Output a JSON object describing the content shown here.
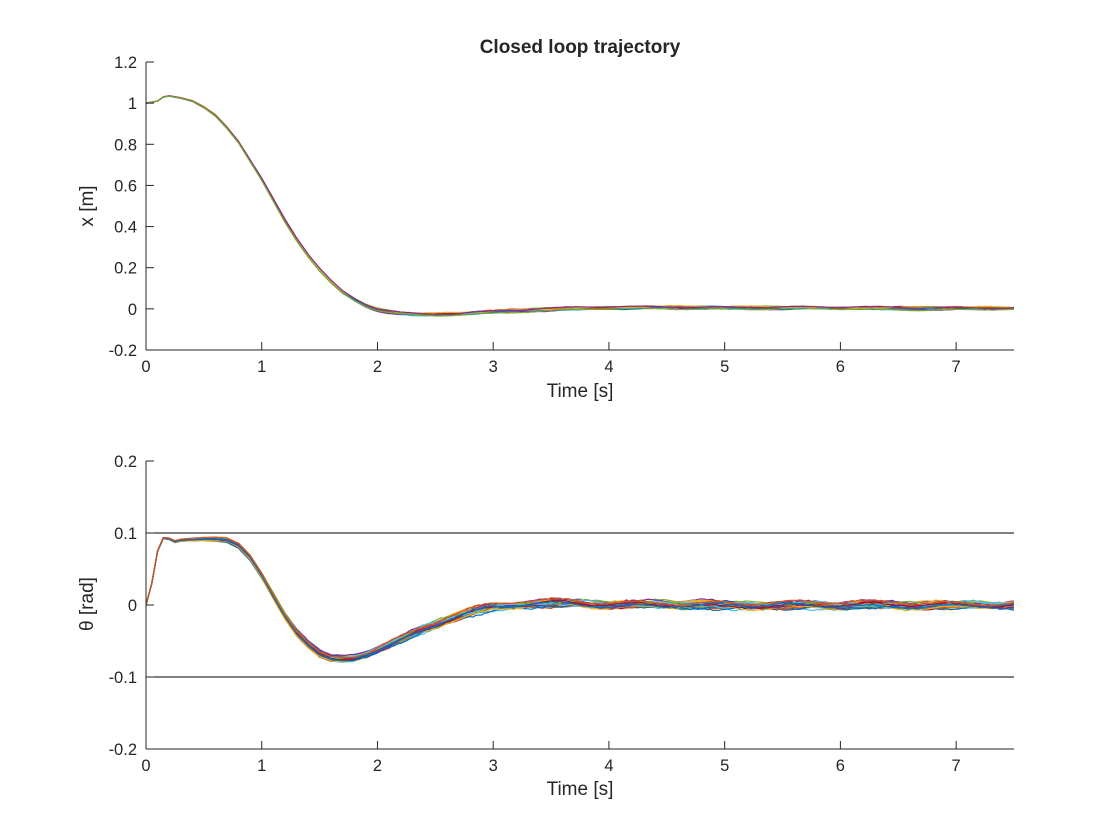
{
  "chart_data": [
    {
      "type": "line",
      "title": "Closed loop trajectory",
      "xlabel": "Time [s]",
      "ylabel": "x [m]",
      "xlim": [
        0,
        7.5
      ],
      "ylim": [
        -0.2,
        1.2
      ],
      "xticks": [
        "0",
        "1",
        "2",
        "3",
        "4",
        "5",
        "6",
        "7"
      ],
      "yticks": [
        "-0.2",
        "0",
        "0.2",
        "0.4",
        "0.6",
        "0.8",
        "1",
        "1.2"
      ],
      "grid": false,
      "legend": "none",
      "series_count": 12,
      "x": [
        0,
        0.1,
        0.15,
        0.2,
        0.3,
        0.4,
        0.5,
        0.6,
        0.7,
        0.8,
        0.9,
        1.0,
        1.1,
        1.2,
        1.3,
        1.4,
        1.5,
        1.6,
        1.7,
        1.8,
        1.9,
        2.0,
        2.1,
        2.2,
        2.3,
        2.4,
        2.5,
        2.6,
        2.7,
        2.8,
        3.0,
        3.25,
        3.5,
        3.75,
        4.0,
        4.5,
        5.0,
        5.5,
        6.0,
        6.5,
        7.0,
        7.5
      ],
      "mean": [
        1.0,
        1.01,
        1.03,
        1.035,
        1.025,
        1.01,
        0.98,
        0.94,
        0.88,
        0.81,
        0.72,
        0.63,
        0.53,
        0.43,
        0.34,
        0.26,
        0.19,
        0.13,
        0.08,
        0.045,
        0.015,
        -0.005,
        -0.015,
        -0.022,
        -0.026,
        -0.028,
        -0.028,
        -0.026,
        -0.024,
        -0.02,
        -0.015,
        -0.008,
        -0.002,
        0.002,
        0.004,
        0.006,
        0.006,
        0.004,
        0.003,
        0.002,
        0.002,
        0.002
      ],
      "colors": [
        "#0072BD",
        "#D95319",
        "#EDB120",
        "#7E2F8E",
        "#77AC30",
        "#4DBEEE",
        "#A2142F"
      ]
    },
    {
      "type": "line",
      "title": "",
      "xlabel": "Time [s]",
      "ylabel": "θ [rad]",
      "xlim": [
        0,
        7.5
      ],
      "ylim": [
        -0.2,
        0.2
      ],
      "xticks": [
        "0",
        "1",
        "2",
        "3",
        "4",
        "5",
        "6",
        "7"
      ],
      "yticks": [
        "-0.2",
        "-0.1",
        "0",
        "0.1",
        "0.2"
      ],
      "grid": false,
      "legend": "none",
      "reference_lines": [
        0.1,
        -0.1
      ],
      "series_count": 30,
      "x": [
        0,
        0.05,
        0.1,
        0.15,
        0.2,
        0.25,
        0.3,
        0.4,
        0.5,
        0.6,
        0.7,
        0.8,
        0.9,
        1.0,
        1.1,
        1.2,
        1.3,
        1.4,
        1.5,
        1.6,
        1.7,
        1.8,
        1.9,
        2.0,
        2.2,
        2.4,
        2.6,
        2.8,
        3.0,
        3.25,
        3.5,
        3.75,
        4.0,
        4.5,
        5.0,
        5.5,
        6.0,
        6.5,
        7.0,
        7.5
      ],
      "mean": [
        0.0,
        0.03,
        0.075,
        0.093,
        0.092,
        0.088,
        0.09,
        0.091,
        0.092,
        0.092,
        0.09,
        0.082,
        0.065,
        0.04,
        0.012,
        -0.015,
        -0.038,
        -0.055,
        -0.068,
        -0.074,
        -0.075,
        -0.073,
        -0.068,
        -0.061,
        -0.047,
        -0.033,
        -0.02,
        -0.01,
        -0.003,
        0.001,
        0.003,
        0.002,
        0.001,
        0.001,
        0.0,
        0.0,
        0.0,
        0.0,
        0.0,
        0.0
      ],
      "colors": [
        "#0072BD",
        "#D95319",
        "#EDB120",
        "#7E2F8E",
        "#77AC30",
        "#4DBEEE",
        "#A2142F"
      ]
    }
  ]
}
